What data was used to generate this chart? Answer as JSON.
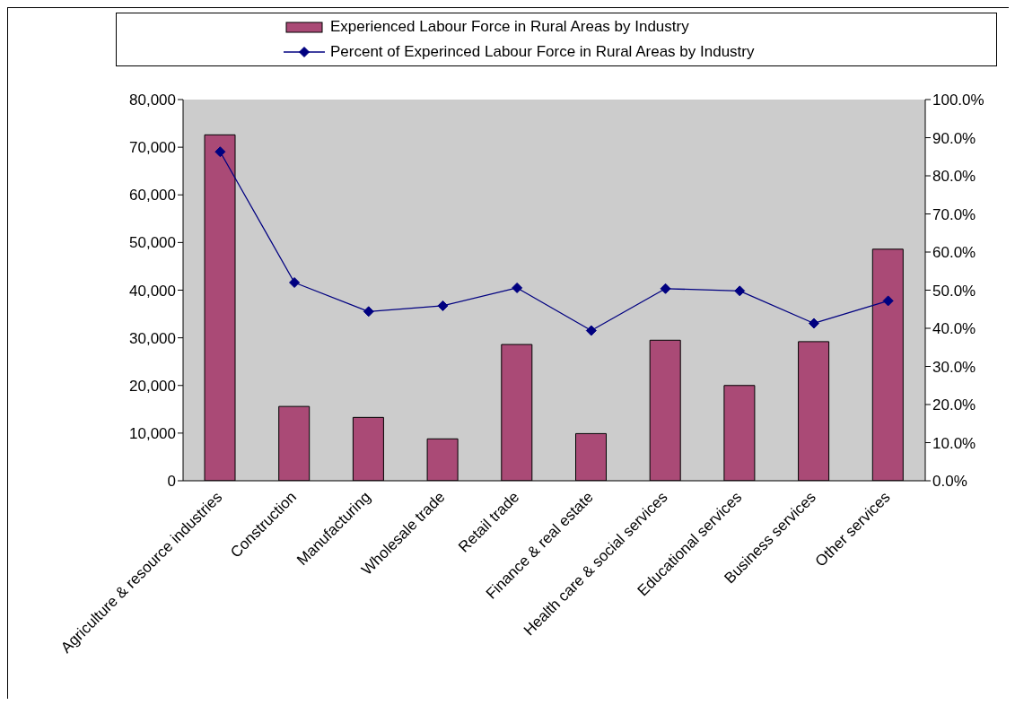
{
  "chart_data": {
    "type": "bar",
    "categories": [
      "Agriculture & resource industries",
      "Construction",
      "Manufacturing",
      "Wholesale trade",
      "Retail trade",
      "Finance & real estate",
      "Health care & social services",
      "Educational services",
      "Business services",
      "Other services"
    ],
    "series": [
      {
        "name": "Experienced Labour Force in Rural Areas by Industry",
        "color": "#aa4a76",
        "values": [
          72600,
          15600,
          13300,
          8800,
          28600,
          9900,
          29500,
          20000,
          29200,
          48600
        ]
      },
      {
        "name": "Percent of Experinced Labour Force in Rural Areas by Industry",
        "type": "line",
        "axis": "y2",
        "color": "#000080",
        "values": [
          86.3,
          52.0,
          44.4,
          45.9,
          50.6,
          39.4,
          50.4,
          49.8,
          41.3,
          47.2
        ]
      }
    ],
    "ylim": [
      0,
      80000
    ],
    "yticks": [
      {
        "value": 0,
        "label": "0"
      },
      {
        "value": 10000,
        "label": "10,000"
      },
      {
        "value": 20000,
        "label": "20,000"
      },
      {
        "value": 30000,
        "label": "30,000"
      },
      {
        "value": 40000,
        "label": "40,000"
      },
      {
        "value": 50000,
        "label": "50,000"
      },
      {
        "value": 60000,
        "label": "60,000"
      },
      {
        "value": 70000,
        "label": "70,000"
      },
      {
        "value": 80000,
        "label": "80,000"
      }
    ],
    "y2lim": [
      0,
      100
    ],
    "y2ticks": [
      {
        "value": 0,
        "label": "0.0%"
      },
      {
        "value": 10,
        "label": "10.0%"
      },
      {
        "value": 20,
        "label": "20.0%"
      },
      {
        "value": 30,
        "label": "30.0%"
      },
      {
        "value": 40,
        "label": "40.0%"
      },
      {
        "value": 50,
        "label": "50.0%"
      },
      {
        "value": 60,
        "label": "60.0%"
      },
      {
        "value": 70,
        "label": "70.0%"
      },
      {
        "value": 80,
        "label": "80.0%"
      },
      {
        "value": 90,
        "label": "90.0%"
      },
      {
        "value": 100,
        "label": "100.0%"
      }
    ],
    "legend": "top",
    "marker": "diamond"
  }
}
